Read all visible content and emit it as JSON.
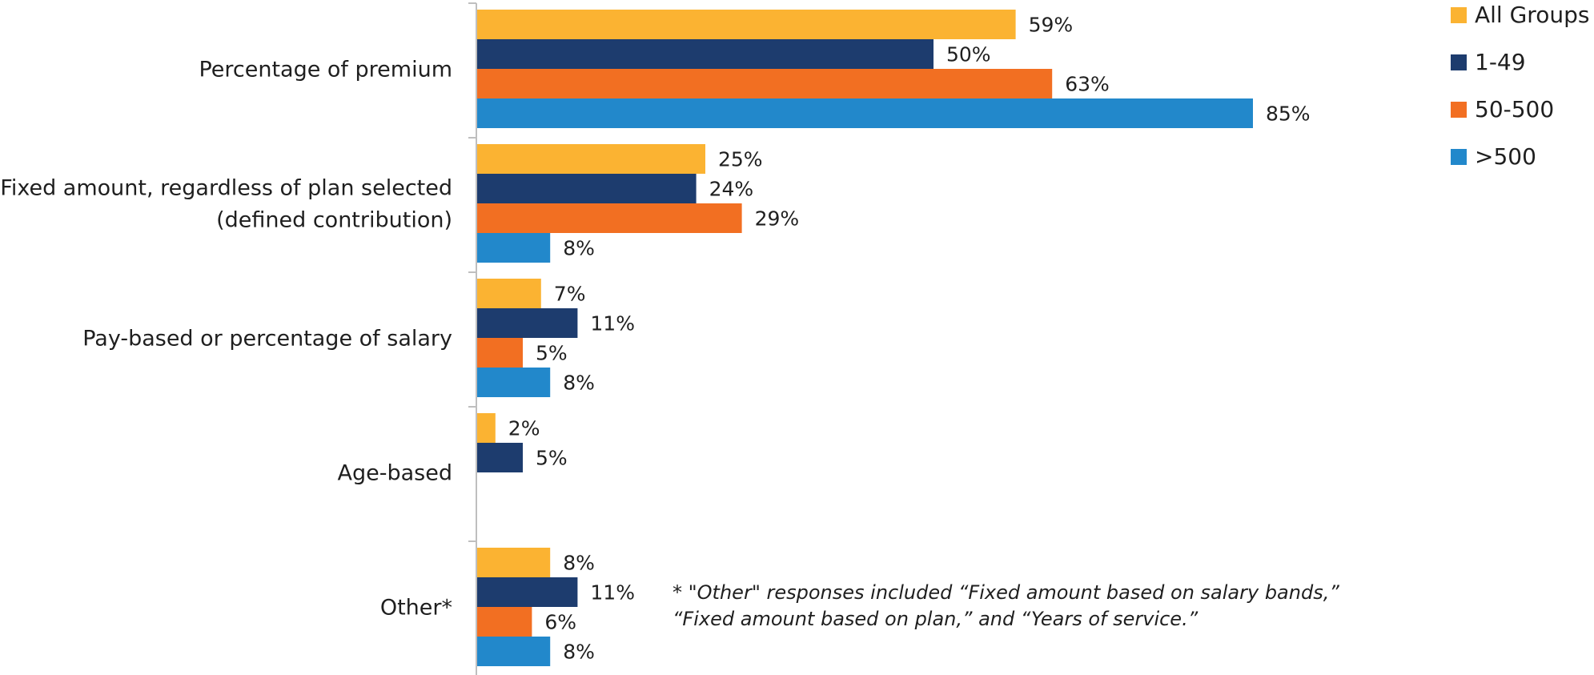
{
  "chart_data": {
    "type": "bar",
    "orientation": "horizontal",
    "categories": [
      [
        "Percentage of premium"
      ],
      [
        "Fixed amount, regardless of plan selected",
        "(defined contribution)"
      ],
      [
        "Pay-based or percentage of salary"
      ],
      [
        "Age-based"
      ],
      [
        "Other*"
      ]
    ],
    "series": [
      {
        "name": "All Groups",
        "color": "#FBB332",
        "values": [
          59,
          25,
          7,
          2,
          8
        ],
        "labels": [
          "59%",
          "25%",
          "7%",
          "2%",
          "8%"
        ]
      },
      {
        "name": "1-49",
        "color": "#1D3C6E",
        "values": [
          50,
          24,
          11,
          5,
          11
        ],
        "labels": [
          "50%",
          "24%",
          "11%",
          "5%",
          "11%"
        ]
      },
      {
        "name": "50-500",
        "color": "#F26F22",
        "values": [
          63,
          29,
          5,
          null,
          6
        ],
        "labels": [
          "63%",
          "29%",
          "5%",
          "",
          "6%"
        ]
      },
      {
        "name": ">500",
        "color": "#2288CB",
        "values": [
          85,
          8,
          8,
          null,
          8
        ],
        "labels": [
          "85%",
          "8%",
          "8%",
          "",
          "8%"
        ]
      }
    ],
    "xlim": [
      0,
      100
    ],
    "grid": false,
    "legend_position": "top-right",
    "title": "",
    "xlabel": "",
    "ylabel": ""
  },
  "footnote": {
    "line1": "* \"Other\" responses included “Fixed amount based on salary bands,”",
    "line2": "“Fixed amount based on plan,” and “Years of service.”"
  },
  "colors": {
    "axis": "#BFBFBF",
    "text": "#1F1F1F"
  }
}
